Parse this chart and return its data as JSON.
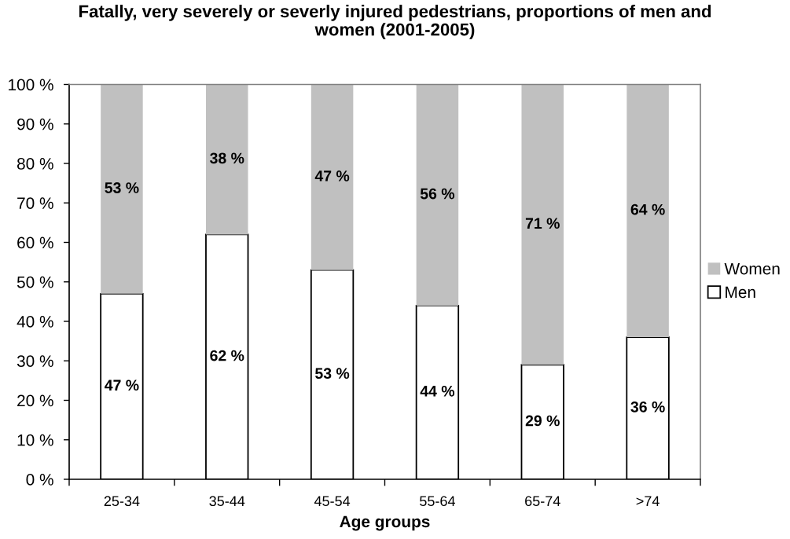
{
  "chart_data": {
    "type": "bar",
    "stacked": true,
    "title": "Fatally, very severely or severly injured pedestrians, proportions of men and women (2001-2005)",
    "xlabel": "Age groups",
    "categories": [
      "25-34",
      "35-44",
      "45-54",
      "55-64",
      "65-74",
      ">74"
    ],
    "series": [
      {
        "name": "Men",
        "color": "#ffffff",
        "values": [
          47,
          62,
          53,
          44,
          29,
          36
        ],
        "value_labels": [
          "47 %",
          "62 %",
          "53 %",
          "44 %",
          "29 %",
          "36 %"
        ]
      },
      {
        "name": "Women",
        "color": "#c0c0c0",
        "values": [
          53,
          38,
          47,
          56,
          71,
          64
        ],
        "value_labels": [
          "53 %",
          "38 %",
          "47 %",
          "56 %",
          "71 %",
          "64 %"
        ]
      }
    ],
    "ylim": [
      0,
      100
    ],
    "yticks": [
      {
        "value": 0,
        "label": "0 %"
      },
      {
        "value": 10,
        "label": "10 %"
      },
      {
        "value": 20,
        "label": "20 %"
      },
      {
        "value": 30,
        "label": "30 %"
      },
      {
        "value": 40,
        "label": "40 %"
      },
      {
        "value": 50,
        "label": "50 %"
      },
      {
        "value": 60,
        "label": "60 %"
      },
      {
        "value": 70,
        "label": "70 %"
      },
      {
        "value": 80,
        "label": "80 %"
      },
      {
        "value": 90,
        "label": "90 %"
      },
      {
        "value": 100,
        "label": "100 %"
      }
    ],
    "legend": "right"
  }
}
